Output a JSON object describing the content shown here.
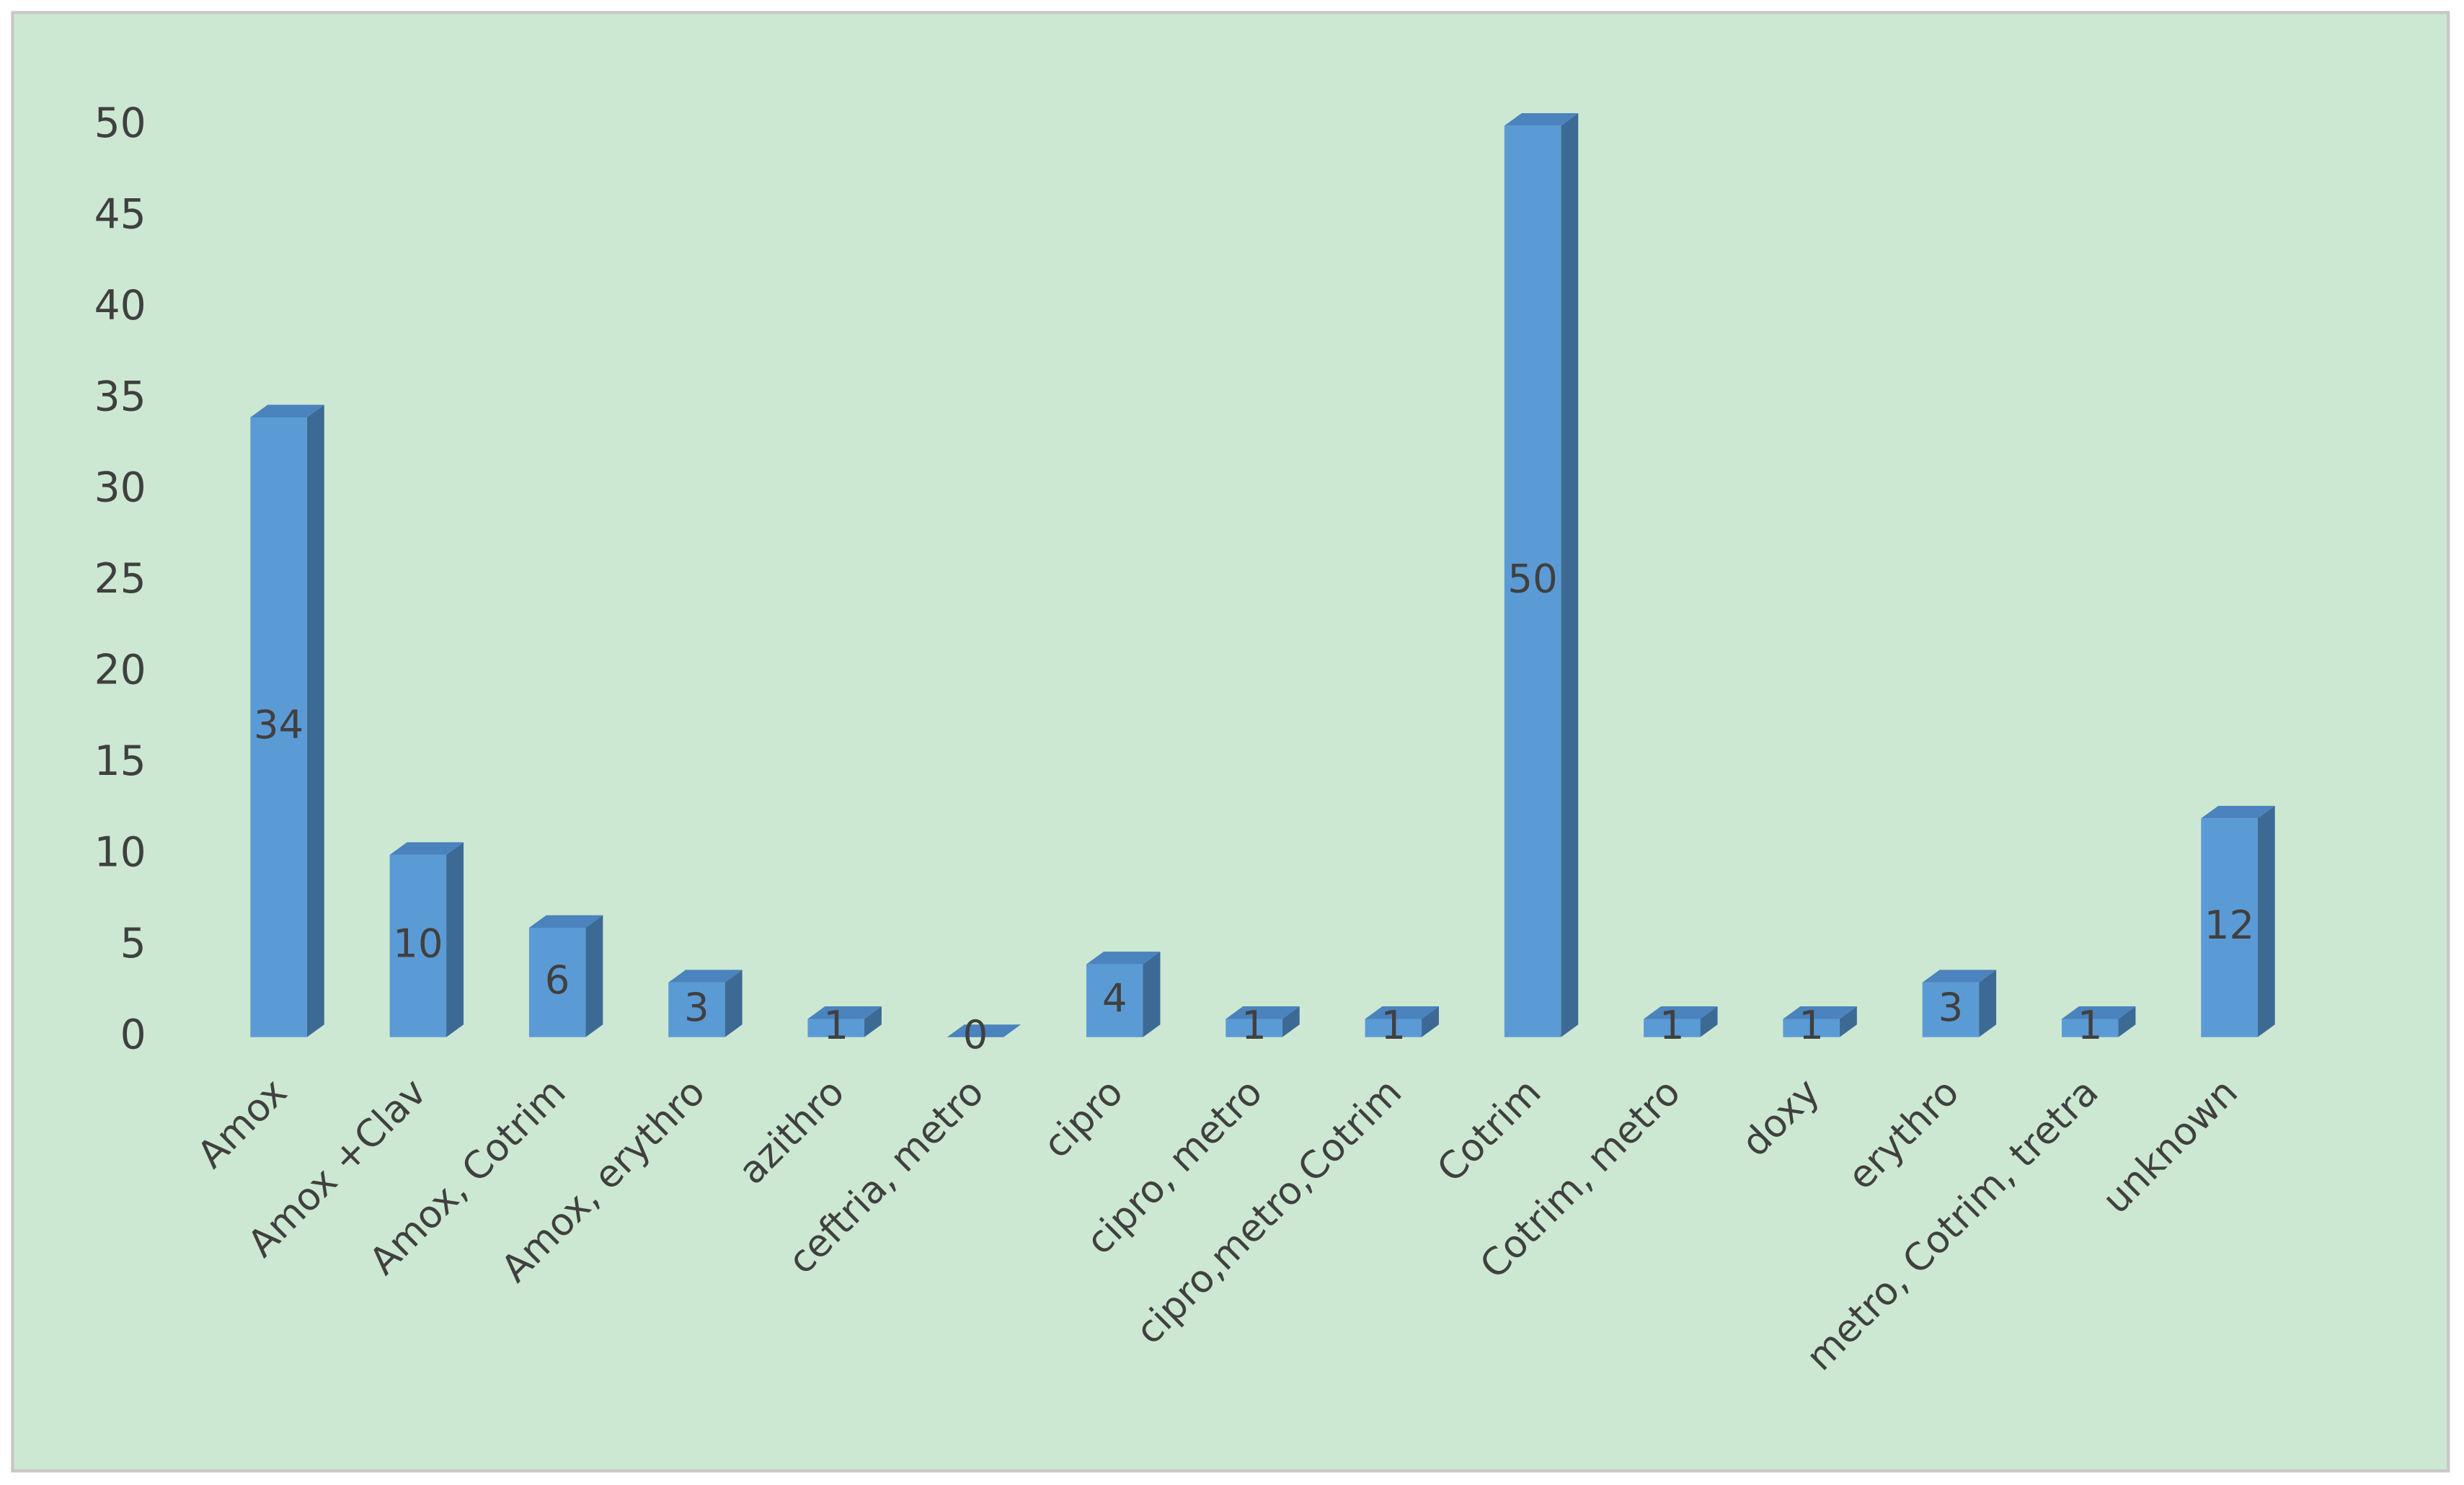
{
  "chart_data": {
    "type": "bar",
    "categories": [
      "Amox",
      "Amox +Clav",
      "Amox, Cotrim",
      "Amox, erythro",
      "azithro",
      "ceftria, metro",
      "cipro",
      "cipro, metro",
      "cipro,metro,Cotrim",
      "Cotrim",
      "Cotrim, metro",
      "doxy",
      "erythro",
      "metro, Cotrim, tretra",
      "unknown"
    ],
    "values": [
      34,
      10,
      6,
      3,
      1,
      0,
      4,
      1,
      1,
      50,
      1,
      1,
      3,
      1,
      12
    ],
    "color": "#5b9bd5",
    "ylim": [
      0,
      50
    ],
    "yticks": [
      0,
      5,
      10,
      15,
      20,
      25,
      30,
      35,
      40,
      45,
      50
    ],
    "grid": false
  }
}
